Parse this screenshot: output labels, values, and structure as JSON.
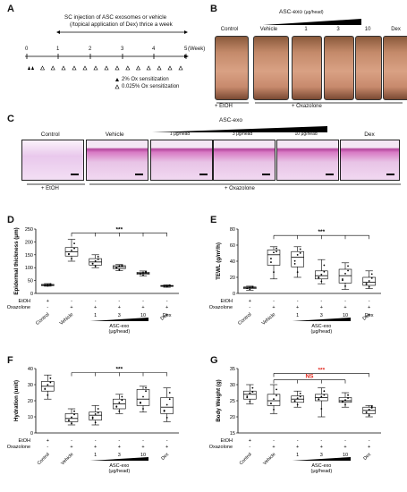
{
  "panels": {
    "A": "A",
    "B": "B",
    "C": "C",
    "D": "D",
    "E": "E",
    "F": "F",
    "G": "G"
  },
  "panel_a": {
    "header_line1": "SC injection of ASC exosomes or vehicle",
    "header_line2": "(/topical application of Dex) thrice a week",
    "week_label": "(Week)",
    "ticks": [
      "0",
      "1",
      "2",
      "3",
      "4",
      "5"
    ],
    "legend_filled": "2% Ox sensitization",
    "legend_open": "0.025% Ox sensitization"
  },
  "panel_b": {
    "group_title": "ASC-exo",
    "unit": "(μg/head)",
    "columns": [
      "Control",
      "Vehicle",
      "1",
      "3",
      "10",
      "Dex"
    ],
    "footer_left": "+ EtOH",
    "footer_right": "+ Oxazolone"
  },
  "panel_c": {
    "group_title": "ASC-exo",
    "labels": [
      "Control",
      "Vehicle",
      "1 μg/head",
      "3 μg/head",
      "10 μg/head",
      "Dex"
    ],
    "footer_left": "+ EtOH",
    "footer_right": "+ Oxazolone"
  },
  "treatment": {
    "etoh_label": "EtOH",
    "ox_label": "Oxazolone",
    "etoh": [
      "+",
      "-",
      "-",
      "-",
      "-",
      "-"
    ],
    "ox": [
      "-",
      "+",
      "+",
      "+",
      "+",
      "+"
    ],
    "group_labels": [
      "Control",
      "Vehicle",
      "1",
      "3",
      "10",
      "Dex"
    ],
    "asc_label": "ASC-exo",
    "unit": "(μg/head)"
  },
  "sig": {
    "stars": "***",
    "ns": "NS"
  },
  "chart_data": [
    {
      "panel": "D",
      "type": "box",
      "ylabel": "Epidermal thickness (μm)",
      "yticks": [
        0,
        50,
        100,
        150,
        200,
        250
      ],
      "ylim": [
        0,
        250
      ],
      "categories": [
        "Control",
        "Vehicle",
        "1",
        "3",
        "10",
        "Dex"
      ],
      "boxes": [
        {
          "min": 28,
          "q1": 30,
          "median": 32,
          "q3": 35,
          "max": 38
        },
        {
          "min": 125,
          "q1": 145,
          "median": 162,
          "q3": 178,
          "max": 210
        },
        {
          "min": 100,
          "q1": 110,
          "median": 122,
          "q3": 135,
          "max": 150
        },
        {
          "min": 88,
          "q1": 96,
          "median": 103,
          "q3": 108,
          "max": 112
        },
        {
          "min": 68,
          "q1": 74,
          "median": 78,
          "q3": 82,
          "max": 87
        },
        {
          "min": 24,
          "q1": 27,
          "median": 29,
          "q3": 31,
          "max": 33
        }
      ]
    },
    {
      "panel": "E",
      "type": "box",
      "ylabel": "TEWL (g/m²/h)",
      "yticks": [
        0,
        20,
        40,
        60,
        80
      ],
      "ylim": [
        0,
        80
      ],
      "categories": [
        "Control",
        "Vehicle",
        "1",
        "3",
        "10",
        "Dex"
      ],
      "boxes": [
        {
          "min": 4,
          "q1": 6,
          "median": 7,
          "q3": 8,
          "max": 9
        },
        {
          "min": 18,
          "q1": 35,
          "median": 48,
          "q3": 54,
          "max": 58
        },
        {
          "min": 20,
          "q1": 33,
          "median": 45,
          "q3": 52,
          "max": 58
        },
        {
          "min": 12,
          "q1": 18,
          "median": 22,
          "q3": 28,
          "max": 42
        },
        {
          "min": 5,
          "q1": 13,
          "median": 22,
          "q3": 30,
          "max": 38
        },
        {
          "min": 6,
          "q1": 10,
          "median": 14,
          "q3": 20,
          "max": 28
        }
      ]
    },
    {
      "panel": "F",
      "type": "box",
      "ylabel": "Hydration (unit)",
      "yticks": [
        0,
        10,
        20,
        30,
        40
      ],
      "ylim": [
        0,
        40
      ],
      "categories": [
        "Control",
        "Vehicle",
        "1",
        "3",
        "10",
        "Dex"
      ],
      "boxes": [
        {
          "min": 21,
          "q1": 26,
          "median": 29,
          "q3": 32,
          "max": 36
        },
        {
          "min": 5,
          "q1": 7,
          "median": 9,
          "q3": 12,
          "max": 15
        },
        {
          "min": 5,
          "q1": 8,
          "median": 11,
          "q3": 13,
          "max": 17
        },
        {
          "min": 12,
          "q1": 15,
          "median": 18,
          "q3": 21,
          "max": 24
        },
        {
          "min": 13,
          "q1": 17,
          "median": 21,
          "q3": 27,
          "max": 29
        },
        {
          "min": 7,
          "q1": 12,
          "median": 16,
          "q3": 22,
          "max": 28
        }
      ]
    },
    {
      "panel": "G",
      "type": "box",
      "ylabel": "Body Weight (g)",
      "yticks": [
        15,
        20,
        25,
        30,
        35
      ],
      "ylim": [
        15,
        35
      ],
      "categories": [
        "Control",
        "Vehicle",
        "1",
        "3",
        "10",
        "Dex"
      ],
      "boxes": [
        {
          "min": 24,
          "q1": 25.5,
          "median": 27,
          "q3": 28,
          "max": 30
        },
        {
          "min": 21,
          "q1": 23.5,
          "median": 25,
          "q3": 27,
          "max": 30
        },
        {
          "min": 23,
          "q1": 24.5,
          "median": 25.5,
          "q3": 26.5,
          "max": 28
        },
        {
          "min": 20,
          "q1": 25,
          "median": 26,
          "q3": 27,
          "max": 29
        },
        {
          "min": 23,
          "q1": 24.5,
          "median": 25,
          "q3": 26,
          "max": 27.5
        },
        {
          "min": 20,
          "q1": 21,
          "median": 22,
          "q3": 23,
          "max": 23.5
        }
      ]
    }
  ]
}
